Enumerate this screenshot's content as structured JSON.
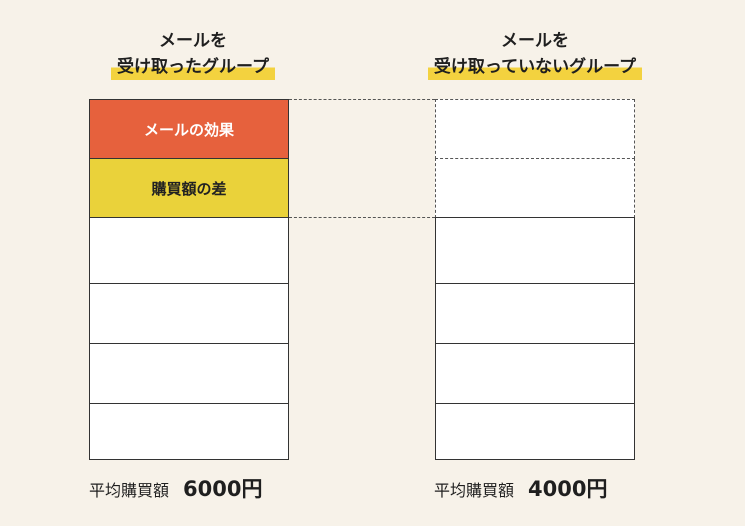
{
  "groups": {
    "received": {
      "title_line1": "メールを",
      "title_line2": "受け取ったグループ",
      "segment_effect": "メールの効果",
      "segment_difference": "購買額の差",
      "average_label": "平均購買額",
      "average_value": "6000円"
    },
    "not_received": {
      "title_line1": "メールを",
      "title_line2": "受け取っていないグループ",
      "average_label": "平均購買額",
      "average_value": "4000円"
    }
  },
  "colors": {
    "background": "#f7f2e9",
    "effect": "#e6613d",
    "difference": "#ead23a",
    "highlight": "#f3d23f"
  }
}
